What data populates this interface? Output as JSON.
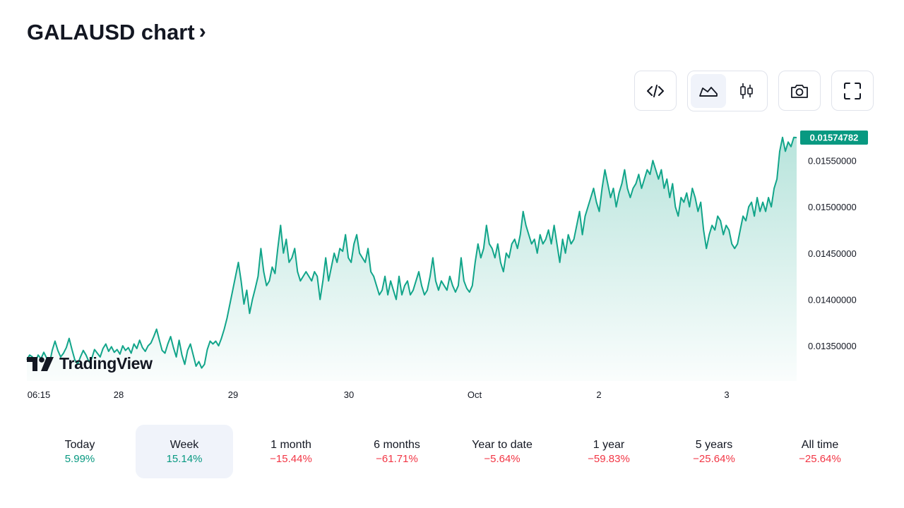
{
  "header": {
    "title": "GALAUSD chart"
  },
  "toolbar": {
    "embed_icon": "code-icon",
    "line_icon": "line-chart-icon",
    "candle_icon": "candlestick-icon",
    "snapshot_icon": "camera-icon",
    "fullscreen_icon": "fullscreen-icon"
  },
  "branding": {
    "logo_text": "TradingView"
  },
  "colors": {
    "line": "#12a58a",
    "price_badge": "#089981",
    "positive": "#089981",
    "negative": "#f23645"
  },
  "price_badge": "0.01574782",
  "periods": [
    {
      "label": "Today",
      "value": "5.99%",
      "trend": "pos"
    },
    {
      "label": "Week",
      "value": "15.14%",
      "trend": "pos",
      "active": true
    },
    {
      "label": "1 month",
      "value": "−15.44%",
      "trend": "neg"
    },
    {
      "label": "6 months",
      "value": "−61.71%",
      "trend": "neg"
    },
    {
      "label": "Year to date",
      "value": "−5.64%",
      "trend": "neg"
    },
    {
      "label": "1 year",
      "value": "−59.83%",
      "trend": "neg"
    },
    {
      "label": "5 years",
      "value": "−25.64%",
      "trend": "neg"
    },
    {
      "label": "All time",
      "value": "−25.64%",
      "trend": "neg"
    }
  ],
  "chart_data": {
    "type": "area",
    "title": "",
    "xlabel": "",
    "ylabel": "",
    "x_ticks": [
      "06:15",
      "28",
      "29",
      "30",
      "Oct",
      "2",
      "3"
    ],
    "y_ticks": [
      "0.01550000",
      "0.01500000",
      "0.01450000",
      "0.01400000",
      "0.01350000"
    ],
    "y_tick_values": [
      0.0155,
      0.015,
      0.0145,
      0.014,
      0.0135
    ],
    "ylim": [
      0.01312,
      0.0159
    ],
    "grid": false,
    "last_value": 0.01574782,
    "series": [
      {
        "values": [
          0.01335,
          0.0134,
          0.01338,
          0.01332,
          0.0134,
          0.01336,
          0.01343,
          0.01337,
          0.0133,
          0.01345,
          0.01355,
          0.01345,
          0.01338,
          0.01342,
          0.01348,
          0.01358,
          0.01346,
          0.01335,
          0.0133,
          0.01338,
          0.01345,
          0.0134,
          0.01333,
          0.01336,
          0.01346,
          0.01342,
          0.01338,
          0.01347,
          0.01352,
          0.01344,
          0.01349,
          0.01343,
          0.01346,
          0.01341,
          0.0135,
          0.01345,
          0.01348,
          0.01342,
          0.01352,
          0.01347,
          0.01356,
          0.01348,
          0.01344,
          0.0135,
          0.01353,
          0.0136,
          0.01368,
          0.01356,
          0.01345,
          0.01342,
          0.01352,
          0.0136,
          0.01348,
          0.01338,
          0.01356,
          0.0134,
          0.0133,
          0.01345,
          0.01352,
          0.0134,
          0.01328,
          0.01333,
          0.01326,
          0.0133,
          0.01346,
          0.01355,
          0.01352,
          0.01355,
          0.0135,
          0.01358,
          0.01368,
          0.0138,
          0.01395,
          0.0141,
          0.01425,
          0.0144,
          0.0142,
          0.01395,
          0.0141,
          0.01385,
          0.014,
          0.01412,
          0.01425,
          0.01455,
          0.0143,
          0.01415,
          0.0142,
          0.01435,
          0.01428,
          0.01455,
          0.0148,
          0.0145,
          0.01465,
          0.0144,
          0.01445,
          0.01455,
          0.0143,
          0.0142,
          0.01425,
          0.0143,
          0.01425,
          0.0142,
          0.0143,
          0.01425,
          0.014,
          0.0142,
          0.01445,
          0.0142,
          0.01435,
          0.0145,
          0.0144,
          0.01455,
          0.01452,
          0.0147,
          0.01445,
          0.0144,
          0.0146,
          0.0147,
          0.0145,
          0.01445,
          0.0144,
          0.01455,
          0.0143,
          0.01425,
          0.01415,
          0.01405,
          0.0141,
          0.01425,
          0.01405,
          0.0142,
          0.0141,
          0.014,
          0.01425,
          0.01405,
          0.01415,
          0.0142,
          0.01405,
          0.0141,
          0.0142,
          0.0143,
          0.01415,
          0.01405,
          0.0141,
          0.01425,
          0.01445,
          0.0142,
          0.0141,
          0.0142,
          0.01415,
          0.0141,
          0.01425,
          0.01415,
          0.01408,
          0.01415,
          0.01445,
          0.0142,
          0.01412,
          0.01408,
          0.01415,
          0.0144,
          0.0146,
          0.01445,
          0.01455,
          0.0148,
          0.0146,
          0.01455,
          0.01445,
          0.0146,
          0.0144,
          0.0143,
          0.0145,
          0.01445,
          0.0146,
          0.01465,
          0.01455,
          0.0147,
          0.01495,
          0.0148,
          0.0147,
          0.0146,
          0.01465,
          0.0145,
          0.0147,
          0.0146,
          0.01465,
          0.01475,
          0.0146,
          0.0148,
          0.0146,
          0.0144,
          0.01465,
          0.0145,
          0.0147,
          0.0146,
          0.01465,
          0.0148,
          0.01495,
          0.0147,
          0.0149,
          0.015,
          0.0151,
          0.0152,
          0.01505,
          0.01495,
          0.0152,
          0.0154,
          0.01525,
          0.0151,
          0.0152,
          0.015,
          0.01515,
          0.01525,
          0.0154,
          0.0152,
          0.0151,
          0.0152,
          0.01525,
          0.01535,
          0.0152,
          0.0153,
          0.0154,
          0.01535,
          0.0155,
          0.0154,
          0.0153,
          0.0154,
          0.0152,
          0.0153,
          0.0151,
          0.01525,
          0.015,
          0.0149,
          0.0151,
          0.01505,
          0.01515,
          0.015,
          0.0152,
          0.0151,
          0.01495,
          0.01505,
          0.01475,
          0.01455,
          0.0147,
          0.0148,
          0.01475,
          0.0149,
          0.01485,
          0.0147,
          0.0148,
          0.01475,
          0.0146,
          0.01455,
          0.0146,
          0.01475,
          0.0149,
          0.01485,
          0.015,
          0.01505,
          0.0149,
          0.0151,
          0.01495,
          0.01505,
          0.01495,
          0.0151,
          0.015,
          0.0152,
          0.0153,
          0.0156,
          0.01575,
          0.0156,
          0.0157,
          0.01565,
          0.01575,
          0.01574782
        ]
      }
    ]
  }
}
